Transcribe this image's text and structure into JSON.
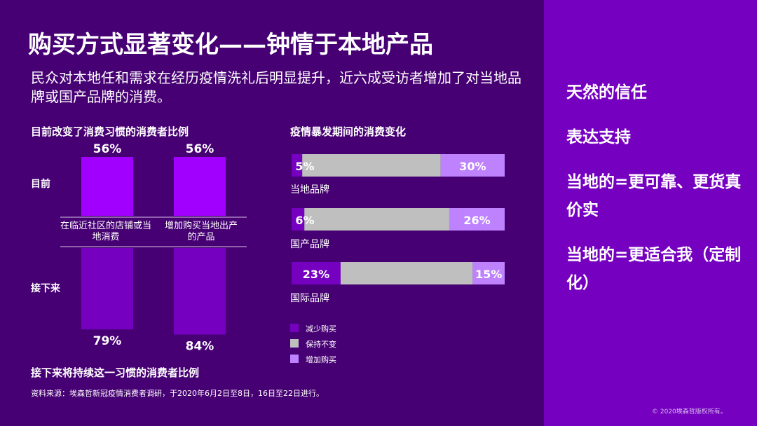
{
  "title": "购买方式显著变化——钟情于本地产品",
  "subtitle": "民众对本地任和需求在经历疫情洗礼后明显提升，近六成受访者增加了对当地品牌或国产品牌的消费。",
  "side_items": [
    "天然的信任",
    "表达支持",
    "当地的=更可靠、更货真价实",
    "当地的=更适合我（定制化）"
  ],
  "source": "资料来源：埃森哲新冠疫情消费者调研，于2020年6月2日至8日，16日至22日进行。",
  "copyright": "© 2020埃森哲版权所有。",
  "colors": {
    "bg": "#460073",
    "side": "#7500c0",
    "bar_top": "#a100ff",
    "bar_bottom": "#7500c0",
    "decrease": "#7500c0",
    "keep": "#bfbfbf",
    "increase": "#be82ff"
  },
  "chart_data": [
    {
      "type": "bar",
      "title": "目前改变了消费习惯的消费者比例",
      "bottom_title": "接下来将持续这一习惯的消费者比例",
      "categories": [
        "在临近社区的店铺或当地消费",
        "增加购买当地出产的产品"
      ],
      "row_labels": [
        "目前",
        "接下来"
      ],
      "series": [
        {
          "name": "目前",
          "values": [
            56,
            56
          ],
          "labels": [
            "56%",
            "56%"
          ]
        },
        {
          "name": "接下来",
          "values": [
            79,
            84
          ],
          "labels": [
            "79%",
            "84%"
          ]
        }
      ],
      "ylim": [
        0,
        100
      ]
    },
    {
      "type": "bar",
      "stacked": true,
      "orientation": "horizontal",
      "title": "疫情暴发期间的消费变化",
      "categories": [
        "当地品牌",
        "国产品牌",
        "国际品牌"
      ],
      "series": [
        {
          "name": "减少购买",
          "values": [
            5,
            6,
            23
          ],
          "labels": [
            "5%",
            "6%",
            "23%"
          ]
        },
        {
          "name": "保持不变",
          "values": [
            65,
            68,
            62
          ]
        },
        {
          "name": "增加购买",
          "values": [
            30,
            26,
            15
          ],
          "labels": [
            "30%",
            "26%",
            "15%"
          ]
        }
      ],
      "legend": [
        "减少购买",
        "保持不变",
        "增加购买"
      ],
      "legend_position": "bottom-left",
      "xlim": [
        0,
        100
      ]
    }
  ]
}
